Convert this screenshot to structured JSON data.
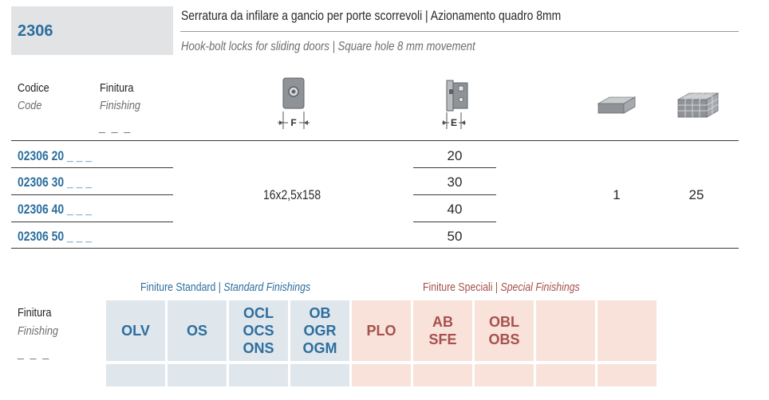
{
  "header": {
    "code": "2306",
    "title_it": "Serratura da infilare a gancio per porte scorrevoli | Azionamento quadro 8mm",
    "title_en": "Hook-bolt locks for sliding doors | Square hole 8 mm movement"
  },
  "columns": {
    "codice": "Codice",
    "code": "Code",
    "finitura": "Finitura",
    "finishing": "Finishing",
    "placeholder": "_ _ _",
    "f_label": "F",
    "e_label": "E"
  },
  "rows": [
    {
      "code": "02306 20 _ _ _",
      "e": "20"
    },
    {
      "code": "02306 30 _ _ _",
      "e": "30"
    },
    {
      "code": "02306 40 _ _ _",
      "e": "40"
    },
    {
      "code": "02306 50 _ _ _",
      "e": "50"
    }
  ],
  "faceplate": "16x2,5x158",
  "pack_qty": "1",
  "box_qty": "25",
  "finishes": {
    "label_it": "Finitura",
    "label_en": "Finishing",
    "placeholder": "_ _ _",
    "standard_title_it": "Finiture Standard",
    "standard_title_en": "Standard Finishings",
    "special_title_it": "Finiture Speciali",
    "special_title_en": "Special Finishings",
    "sep": "|",
    "standard": [
      [
        "OLV"
      ],
      [
        "OS"
      ],
      [
        "OCL",
        "OCS",
        "ONS"
      ],
      [
        "OB",
        "OGR",
        "OGM"
      ]
    ],
    "special": [
      [
        "PLO"
      ],
      [
        "AB",
        "SFE"
      ],
      [
        "OBL",
        "OBS"
      ],
      [],
      []
    ]
  },
  "colors": {
    "blue_text": "#2d6e9e",
    "red_text": "#a6514d",
    "blue_cell": "#dfe6ec",
    "pink_cell": "#f8e2da",
    "code_box": "#e2e3e5"
  }
}
